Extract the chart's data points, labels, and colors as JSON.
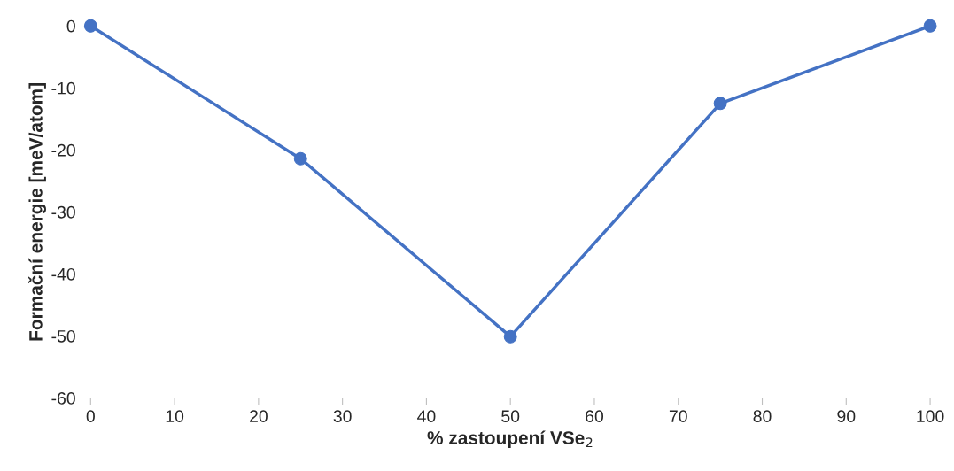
{
  "chart_data": {
    "type": "line",
    "xlabel": "% zastoupení VSe$_{2}$",
    "ylabel": "Formační energie [meV/atom]",
    "x": [
      0,
      25,
      50,
      75,
      100
    ],
    "series": [
      {
        "color": "#4472c4",
        "values": [
          0,
          -21.4,
          -50.1,
          -12.5,
          0
        ]
      }
    ],
    "xlim": [
      0,
      100
    ],
    "xticks": [
      0,
      10,
      20,
      30,
      40,
      50,
      60,
      70,
      80,
      90,
      100
    ],
    "ylim": [
      -60,
      0
    ],
    "yticks": [
      -60,
      -50,
      -40,
      -30,
      -20,
      -10,
      0
    ],
    "grid": false,
    "legend": false,
    "marker": "circle",
    "line_style": "solid"
  }
}
